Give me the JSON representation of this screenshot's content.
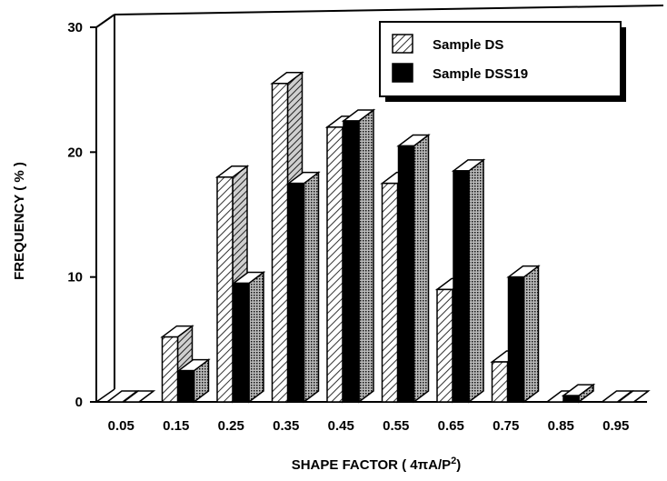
{
  "chart_data": {
    "type": "bar",
    "categories": [
      "0.05",
      "0.15",
      "0.25",
      "0.35",
      "0.45",
      "0.55",
      "0.65",
      "0.75",
      "0.85",
      "0.95"
    ],
    "series": [
      {
        "name": "Sample DS",
        "values": [
          0,
          5.2,
          18,
          25.5,
          22,
          17.5,
          9,
          3.2,
          0,
          0
        ],
        "color": "#9a9a9a",
        "pattern": "hatched"
      },
      {
        "name": "Sample DSS19",
        "values": [
          0,
          2.5,
          9.5,
          17.5,
          22.5,
          20.5,
          18.5,
          10,
          0.5,
          0
        ],
        "color": "#000000",
        "pattern": "solid"
      }
    ],
    "yticks": [
      "0",
      "10",
      "20",
      "30"
    ],
    "ylim": [
      0,
      30
    ],
    "xlabel_prefix": "SHAPE FACTOR ( 4",
    "xlabel_pi": "π",
    "xlabel_mid": "A/P",
    "xlabel_sup": "2",
    "xlabel_suffix": ")",
    "ylabel": "FREQUENCY ( % )",
    "legend_position": "top-right",
    "style": "3d"
  }
}
